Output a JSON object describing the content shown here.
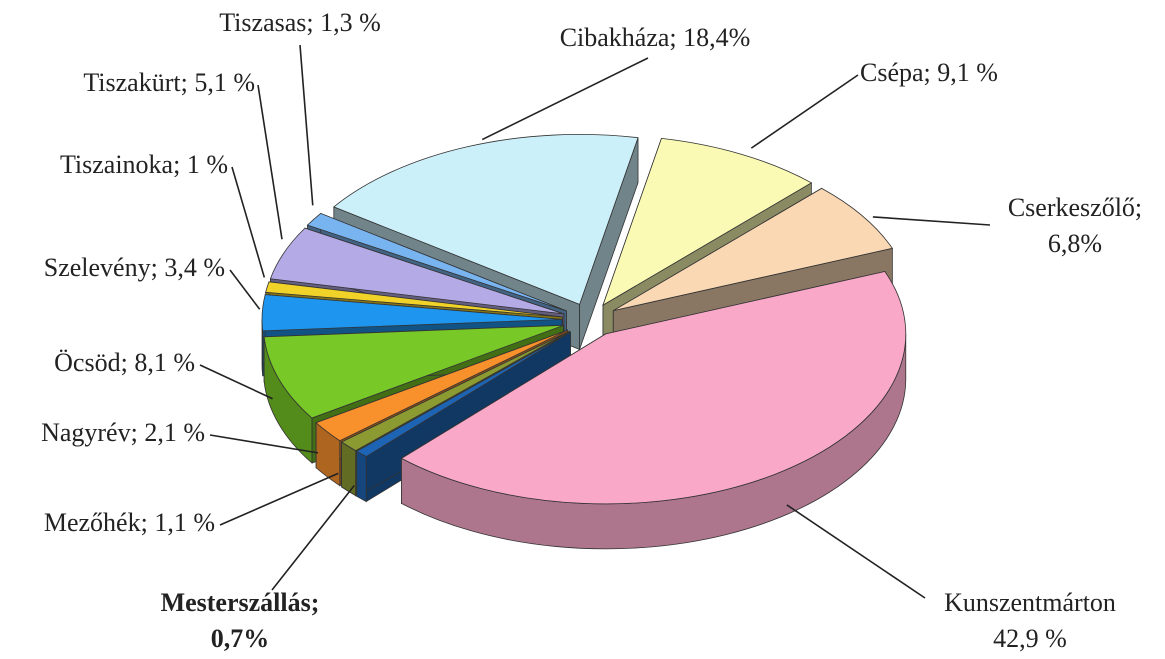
{
  "chart_data": {
    "type": "pie3d",
    "categories": [
      "Cibakháza;",
      "Csépa;",
      "Cserkeszőlő;",
      "Kunszentmárton",
      "Mesterszállás;",
      "Mezőhék;",
      "Nagyrév;",
      "Öcsöd;",
      "Szelevény;",
      "Tiszainoka;",
      "Tiszakürt;",
      "Tiszasas;"
    ],
    "values": [
      18.4,
      9.1,
      6.8,
      42.9,
      0.7,
      1.1,
      2.1,
      8.1,
      3.4,
      1,
      5.1,
      1.3
    ],
    "value_labels": [
      "18,4%",
      "9,1 %",
      "6,8%",
      "42,9 %",
      "0,7%",
      "1,1 %",
      "2,1 %",
      "8,1 %",
      "3,4 %",
      "1 %",
      "5,1 %",
      "1,3 %"
    ],
    "colors": [
      "#ccf0fa",
      "#fafab4",
      "#fad8b4",
      "#f9a8c8",
      "#1e64b4",
      "#8c9a32",
      "#f8902c",
      "#78c828",
      "#1e96f0",
      "#f0d228",
      "#b4aae6",
      "#78b4f0"
    ],
    "label_bold": [
      false,
      false,
      false,
      false,
      true,
      false,
      false,
      false,
      false,
      false,
      false,
      false
    ]
  }
}
